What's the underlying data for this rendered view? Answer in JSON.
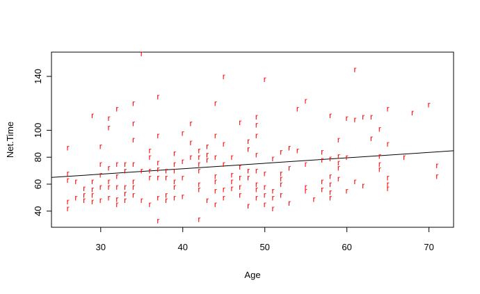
{
  "chart_data": {
    "type": "scatter",
    "xlabel": "Age",
    "ylabel": "Net.Time",
    "xlim": [
      24,
      73
    ],
    "ylim": [
      28,
      158
    ],
    "x_ticks": [
      30,
      40,
      50,
      60,
      70
    ],
    "y_ticks": [
      40,
      60,
      80,
      100,
      140
    ],
    "grid": false,
    "point_marker": "r",
    "point_color": "#ff0000",
    "fit_line": {
      "x": [
        24,
        73
      ],
      "y": [
        65.0,
        84.8
      ],
      "color": "#000000"
    },
    "points": [
      [
        26,
        87
      ],
      [
        26,
        68
      ],
      [
        26,
        63
      ],
      [
        26,
        47
      ],
      [
        26,
        42
      ],
      [
        27,
        62
      ],
      [
        27,
        50
      ],
      [
        28,
        57
      ],
      [
        28,
        52
      ],
      [
        28,
        48
      ],
      [
        29,
        111
      ],
      [
        29,
        62
      ],
      [
        29,
        56
      ],
      [
        29,
        52
      ],
      [
        29,
        47
      ],
      [
        30,
        88
      ],
      [
        30,
        75
      ],
      [
        30,
        67
      ],
      [
        30,
        58
      ],
      [
        30,
        48
      ],
      [
        31,
        109
      ],
      [
        31,
        102
      ],
      [
        31,
        72
      ],
      [
        31,
        62
      ],
      [
        31,
        58
      ],
      [
        31,
        50
      ],
      [
        32,
        116
      ],
      [
        32,
        75
      ],
      [
        32,
        66
      ],
      [
        32,
        58
      ],
      [
        32,
        49
      ],
      [
        32,
        45
      ],
      [
        33,
        75
      ],
      [
        33,
        70
      ],
      [
        33,
        58
      ],
      [
        33,
        53
      ],
      [
        33,
        48
      ],
      [
        34,
        120
      ],
      [
        34,
        105
      ],
      [
        34,
        93
      ],
      [
        34,
        75
      ],
      [
        34,
        62
      ],
      [
        34,
        58
      ],
      [
        34,
        52
      ],
      [
        35,
        157
      ],
      [
        35,
        70
      ],
      [
        35,
        48
      ],
      [
        36,
        85
      ],
      [
        36,
        80
      ],
      [
        36,
        70
      ],
      [
        36,
        65
      ],
      [
        36,
        45
      ],
      [
        37,
        125
      ],
      [
        37,
        96
      ],
      [
        37,
        76
      ],
      [
        37,
        71
      ],
      [
        37,
        65
      ],
      [
        37,
        50
      ],
      [
        37,
        33
      ],
      [
        38,
        70
      ],
      [
        38,
        65
      ],
      [
        38,
        52
      ],
      [
        38,
        48
      ],
      [
        39,
        83
      ],
      [
        39,
        75
      ],
      [
        39,
        70
      ],
      [
        39,
        62
      ],
      [
        39,
        58
      ],
      [
        39,
        50
      ],
      [
        40,
        98
      ],
      [
        40,
        77
      ],
      [
        40,
        65
      ],
      [
        40,
        51
      ],
      [
        41,
        105
      ],
      [
        41,
        91
      ],
      [
        41,
        80
      ],
      [
        42,
        85
      ],
      [
        42,
        80
      ],
      [
        42,
        75
      ],
      [
        42,
        70
      ],
      [
        42,
        60
      ],
      [
        42,
        56
      ],
      [
        42,
        34
      ],
      [
        43,
        88
      ],
      [
        43,
        82
      ],
      [
        43,
        78
      ],
      [
        43,
        48
      ],
      [
        44,
        120
      ],
      [
        44,
        96
      ],
      [
        44,
        80
      ],
      [
        44,
        66
      ],
      [
        44,
        62
      ],
      [
        44,
        55
      ],
      [
        44,
        45
      ],
      [
        45,
        140
      ],
      [
        45,
        90
      ],
      [
        45,
        75
      ],
      [
        45,
        56
      ],
      [
        45,
        50
      ],
      [
        46,
        80
      ],
      [
        46,
        67
      ],
      [
        46,
        62
      ],
      [
        46,
        57
      ],
      [
        47,
        106
      ],
      [
        47,
        73
      ],
      [
        47,
        65
      ],
      [
        47,
        58
      ],
      [
        47,
        52
      ],
      [
        48,
        92
      ],
      [
        48,
        86
      ],
      [
        48,
        70
      ],
      [
        48,
        65
      ],
      [
        48,
        44
      ],
      [
        49,
        110
      ],
      [
        49,
        104
      ],
      [
        49,
        96
      ],
      [
        49,
        82
      ],
      [
        49,
        70
      ],
      [
        49,
        60
      ],
      [
        49,
        56
      ],
      [
        49,
        50
      ],
      [
        50,
        138
      ],
      [
        50,
        68
      ],
      [
        50,
        58
      ],
      [
        50,
        52
      ],
      [
        50,
        45
      ],
      [
        51,
        79
      ],
      [
        51,
        55
      ],
      [
        51,
        50
      ],
      [
        51,
        42
      ],
      [
        52,
        84
      ],
      [
        52,
        68
      ],
      [
        52,
        64
      ],
      [
        52,
        60
      ],
      [
        52,
        52
      ],
      [
        53,
        87
      ],
      [
        53,
        72
      ],
      [
        53,
        46
      ],
      [
        54,
        116
      ],
      [
        54,
        85
      ],
      [
        55,
        122
      ],
      [
        55,
        75
      ],
      [
        55,
        58
      ],
      [
        55,
        55
      ],
      [
        56,
        49
      ],
      [
        57,
        84
      ],
      [
        57,
        78
      ],
      [
        57,
        62
      ],
      [
        57,
        56
      ],
      [
        58,
        111
      ],
      [
        58,
        79
      ],
      [
        58,
        66
      ],
      [
        58,
        60
      ],
      [
        58,
        54
      ],
      [
        58,
        50
      ],
      [
        59,
        93
      ],
      [
        59,
        81
      ],
      [
        59,
        76
      ],
      [
        59,
        72
      ],
      [
        59,
        64
      ],
      [
        60,
        109
      ],
      [
        60,
        80
      ],
      [
        60,
        55
      ],
      [
        61,
        145
      ],
      [
        61,
        108
      ],
      [
        61,
        62
      ],
      [
        62,
        110
      ],
      [
        62,
        59
      ],
      [
        63,
        110
      ],
      [
        63,
        94
      ],
      [
        64,
        101
      ],
      [
        64,
        81
      ],
      [
        64,
        75
      ],
      [
        64,
        71
      ],
      [
        65,
        116
      ],
      [
        65,
        90
      ],
      [
        65,
        65
      ],
      [
        65,
        60
      ],
      [
        65,
        57
      ],
      [
        67,
        80
      ],
      [
        68,
        113
      ],
      [
        70,
        119
      ],
      [
        71,
        74
      ],
      [
        71,
        66
      ]
    ]
  }
}
